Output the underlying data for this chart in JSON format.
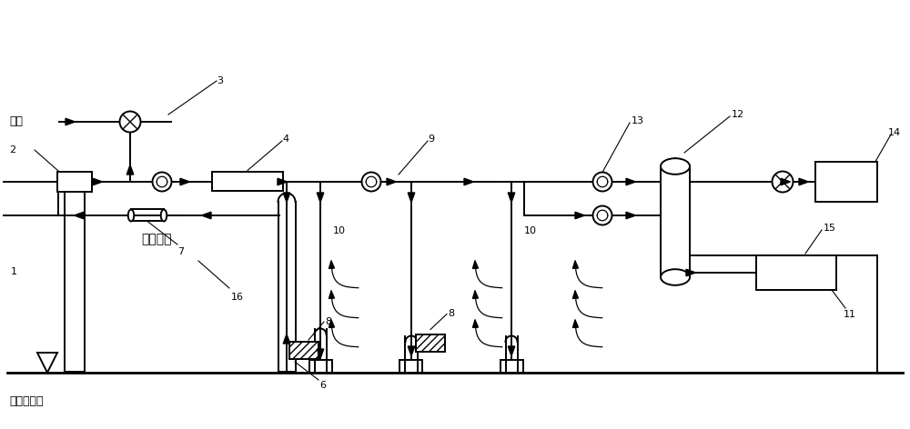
{
  "bg": "#ffffff",
  "lc": "#000000",
  "lw": 1.4,
  "fig_w": 10.0,
  "fig_h": 4.72,
  "dpi": 100,
  "labels": {
    "air": "空气",
    "ground": "地下水位线",
    "soil": "污染土壤",
    "1": "1",
    "2": "2",
    "3": "3",
    "4": "4",
    "6": "6",
    "7": "7",
    "8": "8",
    "9": "9",
    "10": "10",
    "11": "11",
    "12": "12",
    "13": "13",
    "14": "14",
    "15": "15",
    "16": "16"
  }
}
